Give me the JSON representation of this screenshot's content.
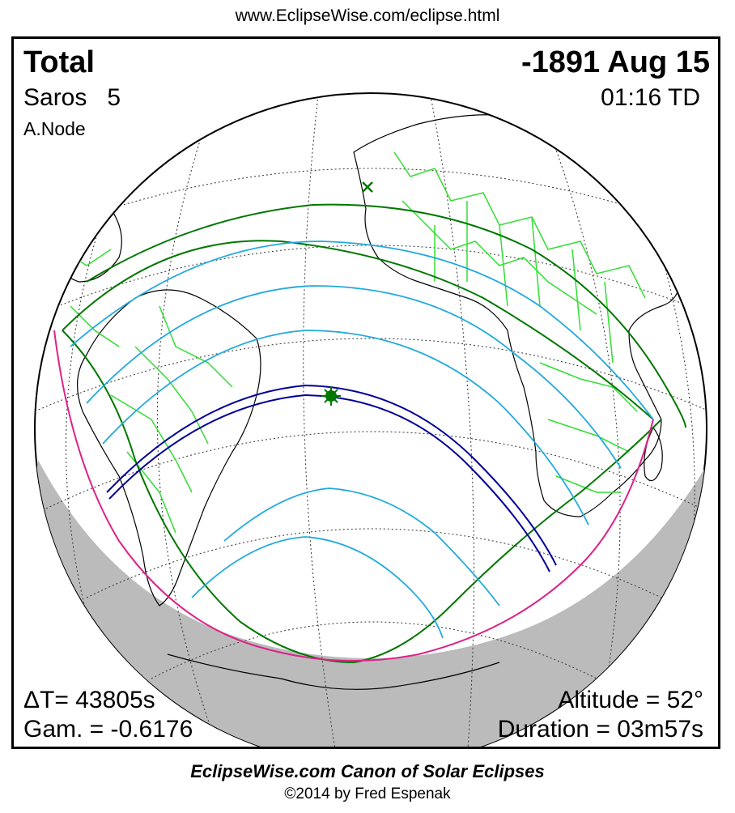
{
  "header_url": "www.EclipseWise.com/eclipse.html",
  "eclipse": {
    "type": "Total",
    "date": "-1891 Aug 15",
    "saros_label": "Saros",
    "saros_number": "5",
    "time": "01:16 TD",
    "node": "A.Node"
  },
  "stats": {
    "delta_t": "ΔT=  43805s",
    "gamma": "Gam. = -0.6176",
    "altitude": "Altitude = 52°",
    "duration": "Duration = 03m57s"
  },
  "footer": {
    "title": "EclipseWise.com Canon of Solar Eclipses",
    "copyright": "©2014 by Fred Espenak"
  },
  "colors": {
    "land_borders": "#33dd33",
    "penumbral_limits": "#007700",
    "umbral_path": "#000099",
    "magnitude_lines": "#22aadd",
    "rise_set_curve": "#dd2288",
    "night_shade": "#bbbbbb",
    "coastlines": "#000000",
    "graticule": "#333333"
  }
}
